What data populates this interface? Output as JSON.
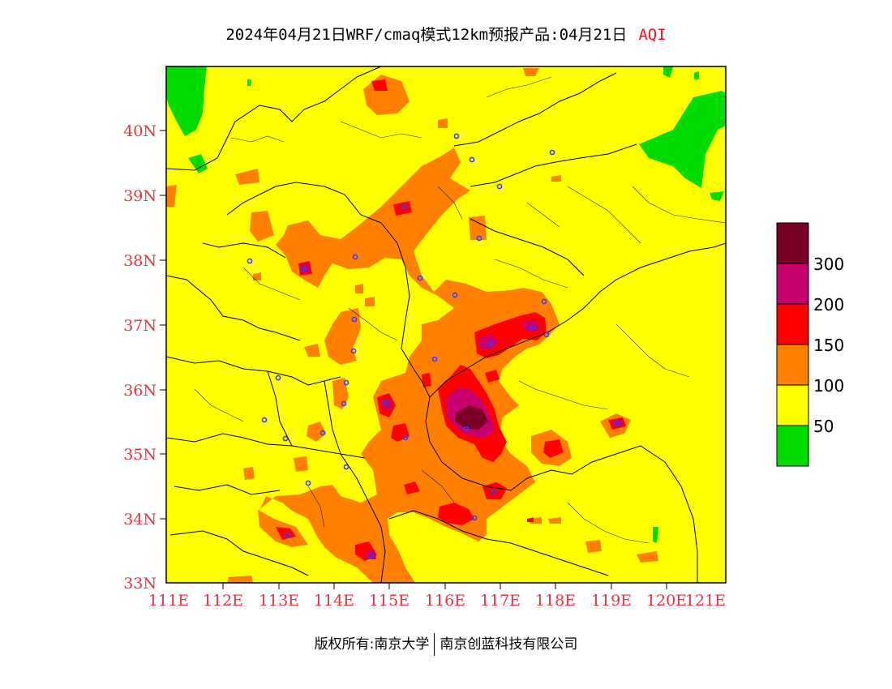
{
  "title": {
    "main": "2024年04月21日WRF/cmaq模式12km预报产品:04月21日",
    "variable": "AQI"
  },
  "footer": {
    "left": "版权所有:南京大学",
    "right": "南京创蓝科技有限公司"
  },
  "axes": {
    "lat_labels": [
      "40N",
      "39N",
      "38N",
      "37N",
      "36N",
      "35N",
      "34N",
      "33N"
    ],
    "lon_labels": [
      "111E",
      "112E",
      "113E",
      "114E",
      "115E",
      "116E",
      "117E",
      "118E",
      "119E",
      "120E",
      "121E"
    ]
  },
  "legend": {
    "labels": [
      "300",
      "200",
      "150",
      "100",
      "50"
    ],
    "colors": [
      "#7a0026",
      "#c8006e",
      "#ff0000",
      "#ff8000",
      "#ffff00",
      "#00dc00"
    ]
  },
  "colors": {
    "yellow": "#ffff00",
    "orange": "#ff8000",
    "red": "#ff0000",
    "magenta": "#c8006e",
    "maroon": "#7a0026",
    "green": "#00dc00",
    "label_red": "#e8333b",
    "station_blue": "#3c3cff"
  }
}
